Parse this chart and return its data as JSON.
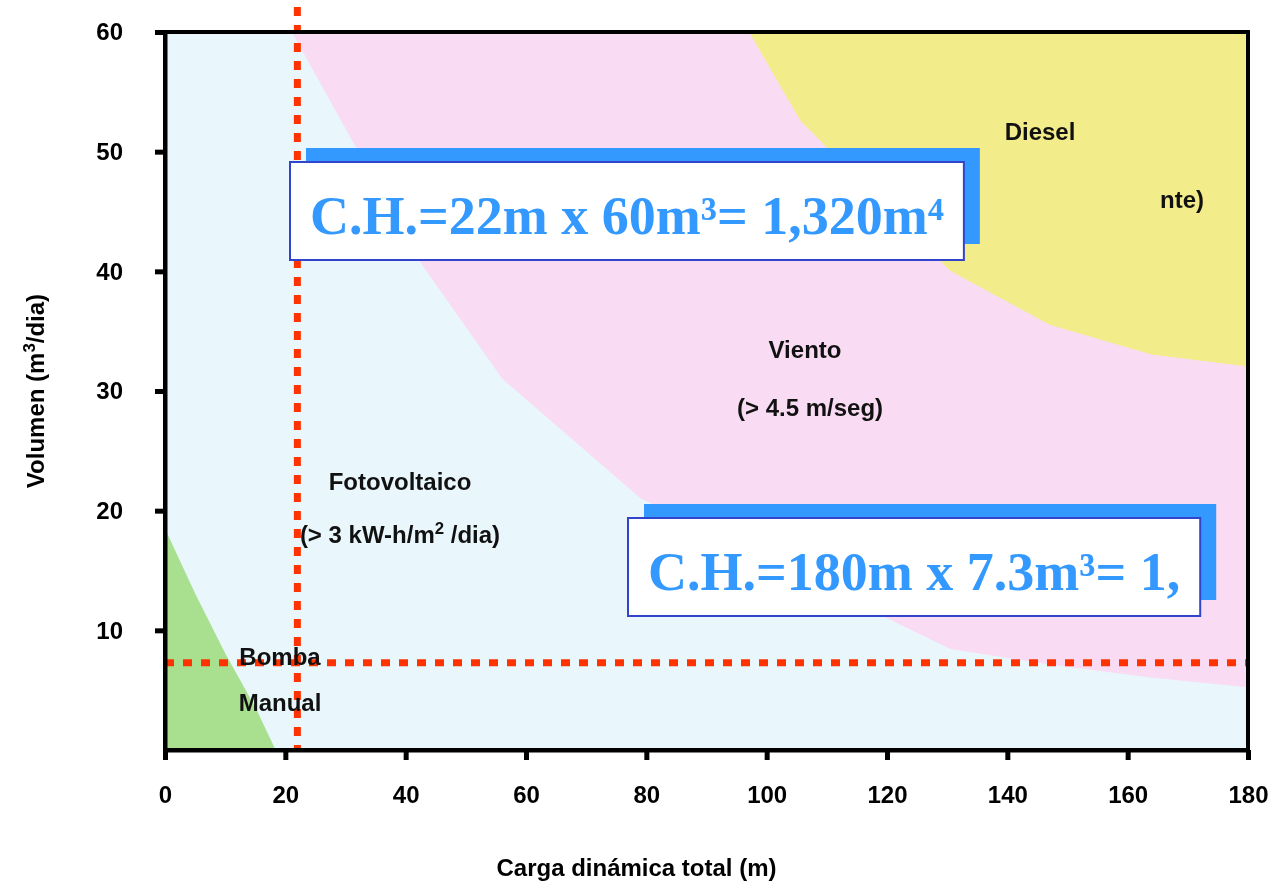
{
  "chart_data": {
    "type": "area",
    "xlabel": "Carga dinámica total (m)",
    "ylabel": "Volumen (m$^{3}$/dia)",
    "xlim": [
      0,
      180
    ],
    "xticks": [
      0,
      20,
      40,
      60,
      80,
      100,
      120,
      140,
      160,
      180
    ],
    "ylim": [
      0,
      60
    ],
    "yticks": [
      10,
      20,
      30,
      40,
      50,
      60
    ],
    "series": [
      {
        "color": "#f3ec8a",
        "x": [
          97,
          180
        ],
        "values": [
          60,
          60
        ]
      },
      {
        "color": "#f9dcf3",
        "x": [
          21,
          97,
          105.5,
          130.5,
          147,
          164,
          180
        ],
        "values": [
          60,
          60,
          52.6,
          40,
          35.5,
          33,
          32
        ]
      },
      {
        "color": "#e9f7fc",
        "x": [
          0,
          21,
          42,
          56,
          79,
          130.5,
          147,
          164,
          180
        ],
        "values": [
          60,
          60,
          41,
          31,
          21,
          8.4,
          7.1,
          6,
          5.2
        ]
      },
      {
        "color": "#a8e090",
        "x": [
          0,
          5,
          10,
          15,
          18.3
        ],
        "values": [
          18.4,
          13,
          8,
          3.5,
          0
        ]
      }
    ],
    "ref_lines": [
      {
        "axis": "x",
        "value": 22,
        "color": "#ff3300",
        "line_style": "dotted"
      },
      {
        "axis": "y",
        "value": 7.3,
        "color": "#ff3300",
        "line_style": "dotted"
      }
    ],
    "annotations": [
      "Fotovoltaico",
      "(> 3 kW-h/m$^{2}$ /dia)",
      "Viento",
      "(> 4.5 m/seg)",
      "Diesel",
      "nte)",
      "Bomba",
      "Manual",
      "C.H.=22m x 60m³= 1,320m⁴",
      "C.H.=180m x 7.3m³= 1,"
    ]
  }
}
